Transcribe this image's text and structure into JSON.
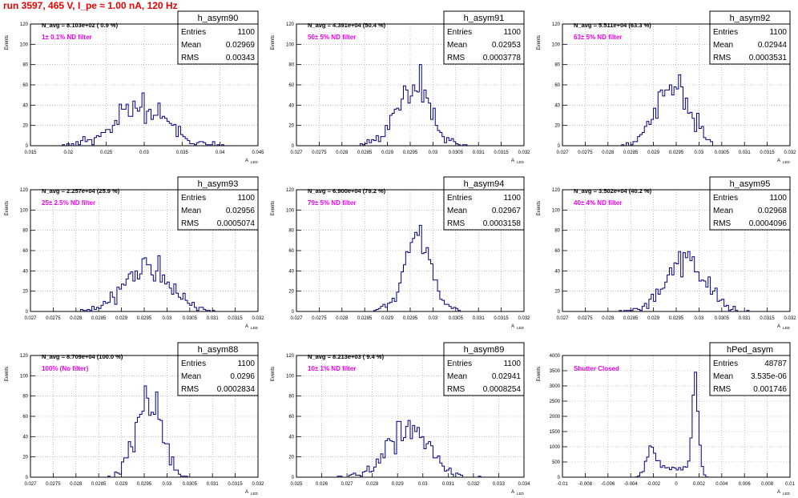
{
  "header": {
    "run_title": "run 3597,   465 V, I_pe ≈ 1.00 nA, 120 Hz"
  },
  "colors": {
    "title": "#ee0000",
    "annotation": "#ee00ee",
    "histogram": "#000080",
    "grid": "#999999"
  },
  "stats_labels": {
    "entries": "Entries",
    "mean": "Mean",
    "rms": "RMS"
  },
  "chart_data": [
    {
      "type": "histogram",
      "name": "h_asym90",
      "navg": "N_avg = 8.103e+02 ( 0.9 %)",
      "annotation": "1± 0.1% ND filter",
      "entries": "1100",
      "mean": "0.02969",
      "rms": "0.00343",
      "ylabel": "Events",
      "xlabel": "A_LED",
      "xlim": [
        0.015,
        0.045
      ],
      "ylim": [
        0,
        120
      ],
      "xticks": [
        0.015,
        0.02,
        0.025,
        0.03,
        0.035,
        0.04,
        0.045
      ],
      "xtick_labels": [
        "0.015",
        "0.02",
        "0.025",
        "0.03",
        "0.035",
        "0.04",
        "0.045"
      ],
      "yticks": [
        0,
        20,
        40,
        60,
        80,
        100,
        120
      ],
      "gen": {
        "mu": 0.02969,
        "sigma": 0.00343,
        "n": 1100,
        "bins": 100,
        "seed": 11
      }
    },
    {
      "type": "histogram",
      "name": "h_asym91",
      "navg": "N_avg = 4.391e+04 (50.4 %)",
      "annotation": "50± 5% ND filter",
      "entries": "1100",
      "mean": "0.02953",
      "rms": "0.0003778",
      "ylabel": "Events",
      "xlabel": "A_LED",
      "xlim": [
        0.027,
        0.032
      ],
      "ylim": [
        0,
        120
      ],
      "xticks": [
        0.027,
        0.0275,
        0.028,
        0.0285,
        0.029,
        0.0295,
        0.03,
        0.0305,
        0.031,
        0.0315,
        0.032
      ],
      "xtick_labels": [
        "0.027",
        "0.0275",
        "0.028",
        "0.0285",
        "0.029",
        "0.0295",
        "0.03",
        "0.0305",
        "0.031",
        "0.0315",
        "0.032"
      ],
      "yticks": [
        0,
        20,
        40,
        60,
        80,
        100,
        120
      ],
      "gen": {
        "mu": 0.02953,
        "sigma": 0.0003778,
        "n": 1100,
        "bins": 100,
        "seed": 23
      }
    },
    {
      "type": "histogram",
      "name": "h_asym92",
      "navg": "N_avg = 5.511e+04 (63.3 %)",
      "annotation": "63± 5% ND filter",
      "entries": "1100",
      "mean": "0.02944",
      "rms": "0.0003531",
      "ylabel": "Events",
      "xlabel": "A_LED",
      "xlim": [
        0.027,
        0.032
      ],
      "ylim": [
        0,
        120
      ],
      "xticks": [
        0.027,
        0.0275,
        0.028,
        0.0285,
        0.029,
        0.0295,
        0.03,
        0.0305,
        0.031,
        0.0315,
        0.032
      ],
      "xtick_labels": [
        "0.027",
        "0.0275",
        "0.028",
        "0.0285",
        "0.029",
        "0.0295",
        "0.03",
        "0.0305",
        "0.031",
        "0.0315",
        "0.032"
      ],
      "yticks": [
        0,
        20,
        40,
        60,
        80,
        100,
        120
      ],
      "gen": {
        "mu": 0.02944,
        "sigma": 0.0003531,
        "n": 1100,
        "bins": 100,
        "seed": 37
      }
    },
    {
      "type": "histogram",
      "name": "h_asym93",
      "navg": "N_avg = 2.257e+04 (25.9 %)",
      "annotation": "25± 2.5% ND filter",
      "entries": "1100",
      "mean": "0.02956",
      "rms": "0.0005074",
      "ylabel": "Events",
      "xlabel": "A_LED",
      "xlim": [
        0.027,
        0.032
      ],
      "ylim": [
        0,
        120
      ],
      "xticks": [
        0.027,
        0.0275,
        0.028,
        0.0285,
        0.029,
        0.0295,
        0.03,
        0.0305,
        0.031,
        0.0315,
        0.032
      ],
      "xtick_labels": [
        "0.027",
        "0.0275",
        "0.028",
        "0.0285",
        "0.029",
        "0.0295",
        "0.03",
        "0.0305",
        "0.031",
        "0.0315",
        "0.032"
      ],
      "yticks": [
        0,
        20,
        40,
        60,
        80,
        100,
        120
      ],
      "gen": {
        "mu": 0.02956,
        "sigma": 0.0005074,
        "n": 1100,
        "bins": 100,
        "seed": 41
      }
    },
    {
      "type": "histogram",
      "name": "h_asym94",
      "navg": "N_avg = 6.900e+04 (79.2 %)",
      "annotation": "79± 5% ND filter",
      "entries": "1100",
      "mean": "0.02967",
      "rms": "0.0003158",
      "ylabel": "Events",
      "xlabel": "A_LED",
      "xlim": [
        0.027,
        0.032
      ],
      "ylim": [
        0,
        120
      ],
      "xticks": [
        0.027,
        0.0275,
        0.028,
        0.0285,
        0.029,
        0.0295,
        0.03,
        0.0305,
        0.031,
        0.0315,
        0.032
      ],
      "xtick_labels": [
        "0.027",
        "0.0275",
        "0.028",
        "0.0285",
        "0.029",
        "0.0295",
        "0.03",
        "0.0305",
        "0.031",
        "0.0315",
        "0.032"
      ],
      "yticks": [
        0,
        20,
        40,
        60,
        80,
        100,
        120
      ],
      "gen": {
        "mu": 0.02967,
        "sigma": 0.0003158,
        "n": 1100,
        "bins": 100,
        "seed": 53
      }
    },
    {
      "type": "histogram",
      "name": "h_asym95",
      "navg": "N_avg = 3.502e+04 (40.2 %)",
      "annotation": "40± 4% ND filter",
      "entries": "1100",
      "mean": "0.02968",
      "rms": "0.0004096",
      "ylabel": "Events",
      "xlabel": "A_LED",
      "xlim": [
        0.027,
        0.032
      ],
      "ylim": [
        0,
        120
      ],
      "xticks": [
        0.027,
        0.0275,
        0.028,
        0.0285,
        0.029,
        0.0295,
        0.03,
        0.0305,
        0.031,
        0.0315,
        0.032
      ],
      "xtick_labels": [
        "0.027",
        "0.0275",
        "0.028",
        "0.0285",
        "0.029",
        "0.0295",
        "0.03",
        "0.0305",
        "0.031",
        "0.0315",
        "0.032"
      ],
      "yticks": [
        0,
        20,
        40,
        60,
        80,
        100,
        120
      ],
      "gen": {
        "mu": 0.02968,
        "sigma": 0.0004096,
        "n": 1100,
        "bins": 100,
        "seed": 67
      }
    },
    {
      "type": "histogram",
      "name": "h_asym88",
      "navg": "N_avg = 8.709e+04 (100.0 %)",
      "annotation": "100% (No filter)",
      "entries": "1100",
      "mean": "0.0296",
      "rms": "0.0002834",
      "ylabel": "Events",
      "xlabel": "A_LED",
      "xlim": [
        0.027,
        0.032
      ],
      "ylim": [
        0,
        120
      ],
      "xticks": [
        0.027,
        0.0275,
        0.028,
        0.0285,
        0.029,
        0.0295,
        0.03,
        0.0305,
        0.031,
        0.0315,
        0.032
      ],
      "xtick_labels": [
        "0.027",
        "0.0275",
        "0.028",
        "0.0285",
        "0.029",
        "0.0295",
        "0.03",
        "0.0305",
        "0.031",
        "0.0315",
        "0.032"
      ],
      "yticks": [
        0,
        20,
        40,
        60,
        80,
        100,
        120
      ],
      "gen": {
        "mu": 0.0296,
        "sigma": 0.0002834,
        "n": 1100,
        "bins": 100,
        "seed": 79
      }
    },
    {
      "type": "histogram",
      "name": "h_asym89",
      "navg": "N_avg = 8.213e+03 ( 9.4 %)",
      "annotation": "10± 1% ND filter",
      "entries": "1100",
      "mean": "0.02941",
      "rms": "0.0008254",
      "ylabel": "Events",
      "xlabel": "A_LED",
      "xlim": [
        0.025,
        0.034
      ],
      "ylim": [
        0,
        120
      ],
      "xticks": [
        0.025,
        0.026,
        0.027,
        0.028,
        0.029,
        0.03,
        0.031,
        0.032,
        0.033,
        0.034
      ],
      "xtick_labels": [
        "0.025",
        "0.026",
        "0.027",
        "0.028",
        "0.029",
        "0.03",
        "0.031",
        "0.032",
        "0.033",
        "0.034"
      ],
      "yticks": [
        0,
        20,
        40,
        60,
        80,
        100,
        120
      ],
      "gen": {
        "mu": 0.02941,
        "sigma": 0.0008254,
        "n": 1100,
        "bins": 100,
        "seed": 83
      }
    },
    {
      "type": "histogram",
      "name": "hPed_asym",
      "navg": "",
      "annotation": "Shutter Closed",
      "entries": "48787",
      "mean": "3.535e-06",
      "rms": "0.001746",
      "ylabel": "Events",
      "xlabel": "A_LED",
      "xlim": [
        -0.01,
        0.01
      ],
      "ylim": [
        0,
        4000
      ],
      "xticks": [
        -0.01,
        -0.008,
        -0.006,
        -0.004,
        -0.002,
        0,
        0.002,
        0.004,
        0.006,
        0.008,
        0.01
      ],
      "xtick_labels": [
        "-0.01",
        "-0.008",
        "-0.006",
        "-0.004",
        "-0.002",
        "0",
        "0.002",
        "0.004",
        "0.006",
        "0.008",
        "0.01"
      ],
      "yticks": [
        0,
        500,
        1000,
        1500,
        2000,
        2500,
        3000,
        3500,
        4000
      ],
      "gen": {
        "bimodal": true,
        "bins": 100,
        "seed": 97
      }
    }
  ]
}
